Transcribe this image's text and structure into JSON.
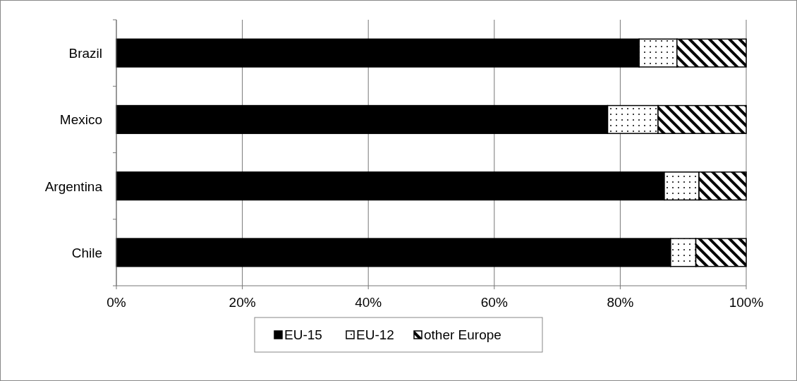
{
  "chart_data": {
    "type": "bar",
    "orientation": "horizontal",
    "stacked": true,
    "categories": [
      "Brazil",
      "Mexico",
      "Argentina",
      "Chile"
    ],
    "series": [
      {
        "name": "EU-15",
        "color": "#000000",
        "values": [
          83,
          78,
          87,
          88
        ]
      },
      {
        "name": "EU-12",
        "color": "#000000",
        "values": [
          6,
          8,
          5.5,
          4
        ]
      },
      {
        "name": "other Europe",
        "color": "#000000",
        "values": [
          11,
          14,
          7.5,
          8
        ]
      }
    ],
    "xlim": [
      0,
      100
    ],
    "xticks": [
      {
        "value": 0,
        "label": "0%"
      },
      {
        "value": 20,
        "label": "20%"
      },
      {
        "value": 40,
        "label": "40%"
      },
      {
        "value": 60,
        "label": "60%"
      },
      {
        "value": 80,
        "label": "80%"
      },
      {
        "value": 100,
        "label": "100%"
      }
    ],
    "grid": "x",
    "legend": "bottom"
  }
}
